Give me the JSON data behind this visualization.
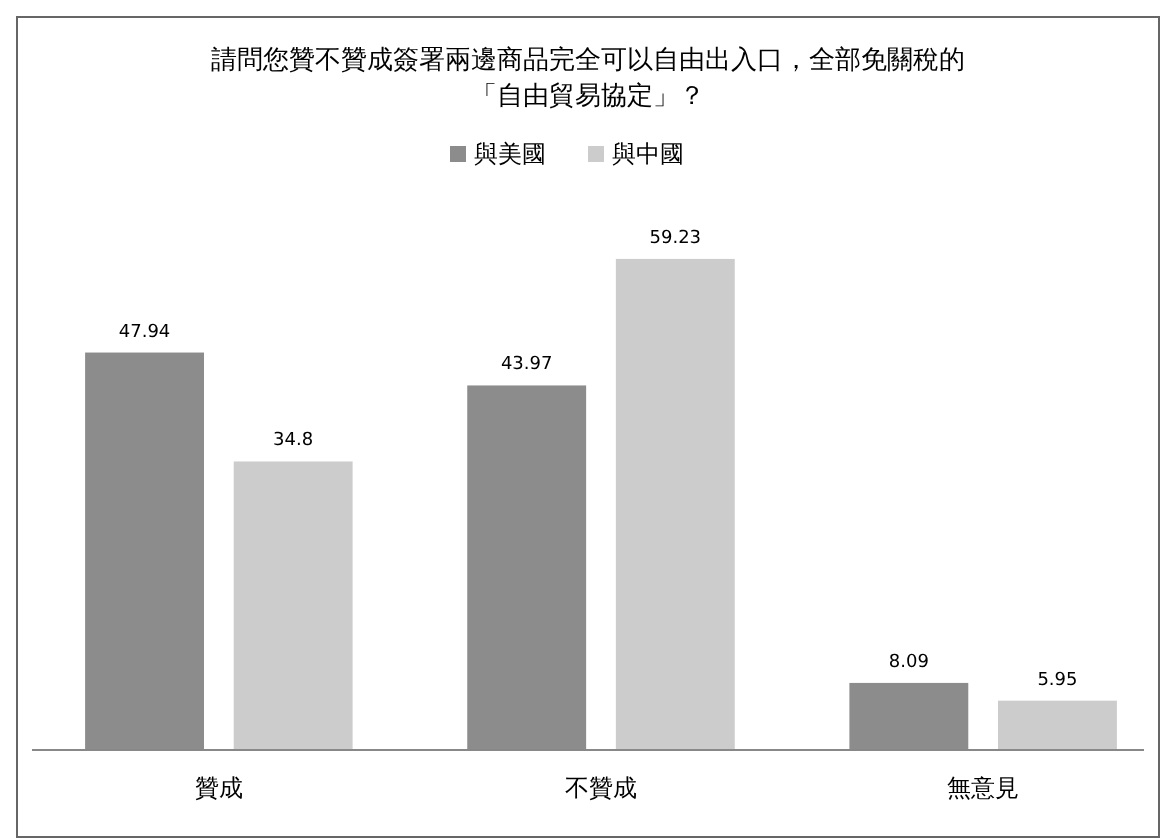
{
  "chart_data": {
    "type": "bar",
    "title": "請問您贊不贊成簽署兩邊商品完全可以自由出入口，全部免關稅的「自由貿易協定」？",
    "categories": [
      "贊成",
      "不贊成",
      "無意見"
    ],
    "series": [
      {
        "name": "與美國",
        "color": "#8c8c8c",
        "values": [
          47.94,
          43.97,
          8.09
        ]
      },
      {
        "name": "與中國",
        "color": "#cccccc",
        "values": [
          34.8,
          59.23,
          5.95
        ]
      }
    ],
    "data_labels": true,
    "legend": "top"
  }
}
